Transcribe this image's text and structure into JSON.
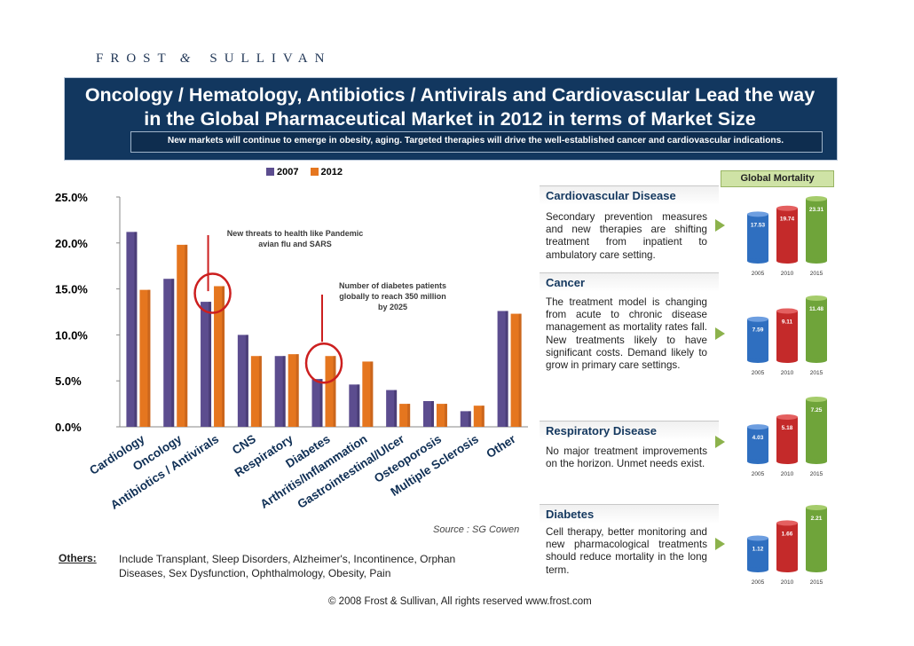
{
  "brand": {
    "frost": "FROST",
    "amp": "&",
    "sullivan": "SULLIVAN"
  },
  "header": {
    "title_line1": "Oncology / Hematology, Antibiotics / Antivirals and Cardiovascular Lead the way",
    "title_line2": "in the Global Pharmaceutical Market in 2012 in terms of Market Size",
    "subtitle": "New markets will continue to emerge in obesity, aging. Targeted therapies will drive the well-established cancer and cardiovascular indications."
  },
  "colors": {
    "series_2007": "#5c4d8f",
    "series_2012": "#e5761f",
    "highlight": "#cc1f1f",
    "accent": "#8cb24c"
  },
  "chart_data": {
    "type": "bar",
    "categories": [
      "Cardiology",
      "Oncology",
      "Antibiotics / Antivirals",
      "CNS",
      "Respiratory",
      "Diabetes",
      "Arthritis/Inflammation",
      "Gastrointestinal/Ulcer",
      "Osteoporosis",
      "Multiple Sclerosis",
      "Other"
    ],
    "series": [
      {
        "name": "2007",
        "values": [
          21.2,
          16.1,
          13.6,
          10.0,
          7.7,
          5.2,
          4.6,
          4.0,
          2.8,
          1.7,
          12.6
        ]
      },
      {
        "name": "2012",
        "values": [
          14.9,
          19.8,
          15.3,
          7.7,
          7.9,
          7.7,
          7.1,
          2.5,
          2.5,
          2.3,
          12.3
        ]
      }
    ],
    "ylim": [
      0,
      25
    ],
    "yticks": [
      "0.0%",
      "5.0%",
      "10.0%",
      "15.0%",
      "20.0%",
      "25.0%"
    ],
    "yticks_values": [
      0,
      5,
      10,
      15,
      20,
      25
    ],
    "highlighted_categories": [
      "Antibiotics / Antivirals",
      "Diabetes"
    ],
    "annotations": [
      {
        "text_line1": "New threats to health like Pandemic",
        "text_line2": "avian flu and SARS"
      },
      {
        "text_line1": "Number of diabetes patients",
        "text_line2": "globally to reach 350 million",
        "text_line3": "by 2025"
      }
    ],
    "source": "Source : SG Cowen"
  },
  "others": {
    "label": "Others:",
    "text": "Include Transplant, Sleep Disorders, Alzheimer's, Incontinence, Orphan Diseases, Sex Dysfunction, Ophthalmology, Obesity, Pain"
  },
  "global_mortality": {
    "badge": "Global Mortality",
    "sections": [
      {
        "title": "Cardiovascular Disease",
        "text": "Secondary prevention measures and new therapies are shifting treatment from inpatient to ambulatory care setting.",
        "years": [
          "2005",
          "2010",
          "2015"
        ],
        "values": [
          17.53,
          19.74,
          23.31
        ],
        "labels": [
          "17.53",
          "19.74",
          "23.31"
        ]
      },
      {
        "title": "Cancer",
        "text": "The treatment model is changing from acute to chronic disease management as mortality rates fall. New treatments likely to have significant costs. Demand likely to grow in primary care settings.",
        "years": [
          "2005",
          "2010",
          "2015"
        ],
        "values": [
          7.59,
          9.11,
          11.48
        ],
        "labels": [
          "7.59",
          "9.11",
          "11.48"
        ]
      },
      {
        "title": "Respiratory Disease",
        "text": "No major treatment improvements on the horizon. Unmet needs exist.",
        "years": [
          "2005",
          "2010",
          "2015"
        ],
        "values": [
          4.03,
          5.18,
          7.25
        ],
        "labels": [
          "4.03",
          "5.18",
          "7.25"
        ]
      },
      {
        "title": "Diabetes",
        "text": "Cell therapy, better monitoring and new pharmacological treatments should reduce mortality in the long term.",
        "years": [
          "2005",
          "2010",
          "2015"
        ],
        "values": [
          1.12,
          1.66,
          2.21
        ],
        "labels": [
          "1.12",
          "1.66",
          "2.21"
        ]
      }
    ]
  },
  "footer": {
    "copyright": "© 2008 Frost & Sullivan, All rights reserved  www.frost.com"
  }
}
